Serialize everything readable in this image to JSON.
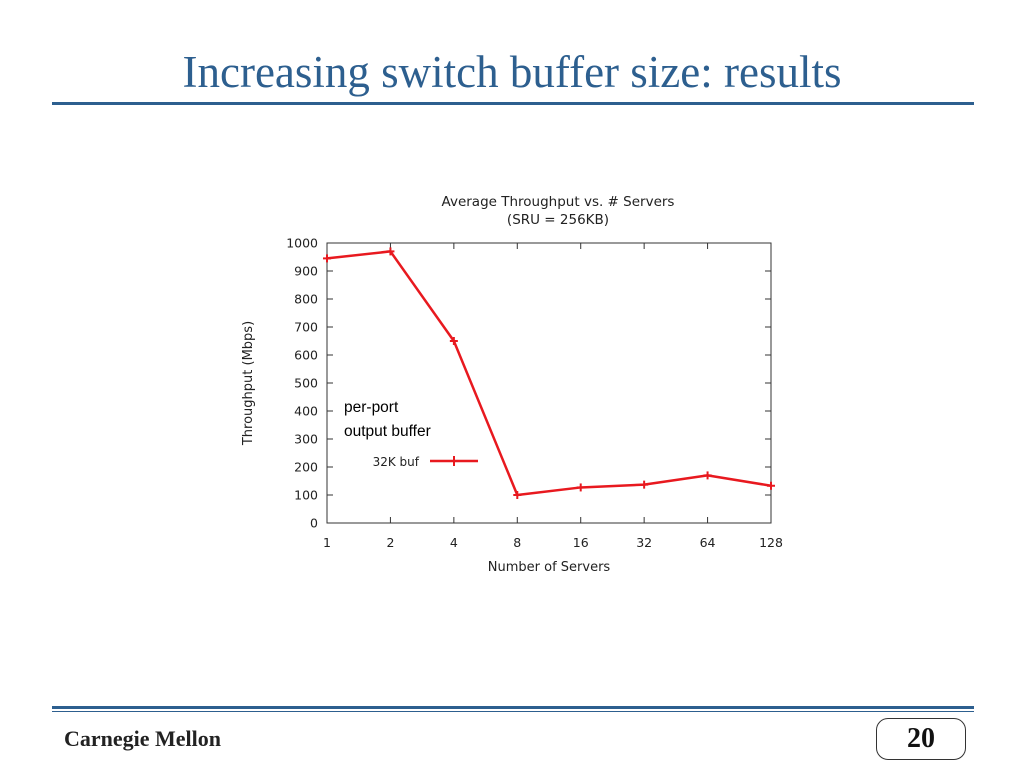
{
  "slide": {
    "title": "Increasing switch buffer size: results",
    "footer_brand": "Carnegie Mellon",
    "page_number": "20",
    "colors": {
      "title": "#2d5f8f",
      "rule": "#2d5f8f",
      "series": "#e8191f"
    }
  },
  "chart_data": {
    "type": "line",
    "title": "Average Throughput vs. # Servers",
    "subtitle": "(SRU = 256KB)",
    "xlabel": "Number of Servers",
    "ylabel": "Throughput (Mbps)",
    "x_scale": "log2",
    "categories": [
      "1",
      "2",
      "4",
      "8",
      "16",
      "32",
      "64",
      "128"
    ],
    "x": [
      1,
      2,
      4,
      8,
      16,
      32,
      64,
      128
    ],
    "ylim": [
      0,
      1000
    ],
    "yticks": [
      0,
      100,
      200,
      300,
      400,
      500,
      600,
      700,
      800,
      900,
      1000
    ],
    "grid": false,
    "legend_position": "middle-left",
    "annotation": [
      "per-port",
      "output buffer"
    ],
    "series": [
      {
        "name": "32K buf",
        "color": "#e8191f",
        "values": [
          945,
          970,
          650,
          100,
          127,
          137,
          170,
          133
        ]
      }
    ]
  }
}
